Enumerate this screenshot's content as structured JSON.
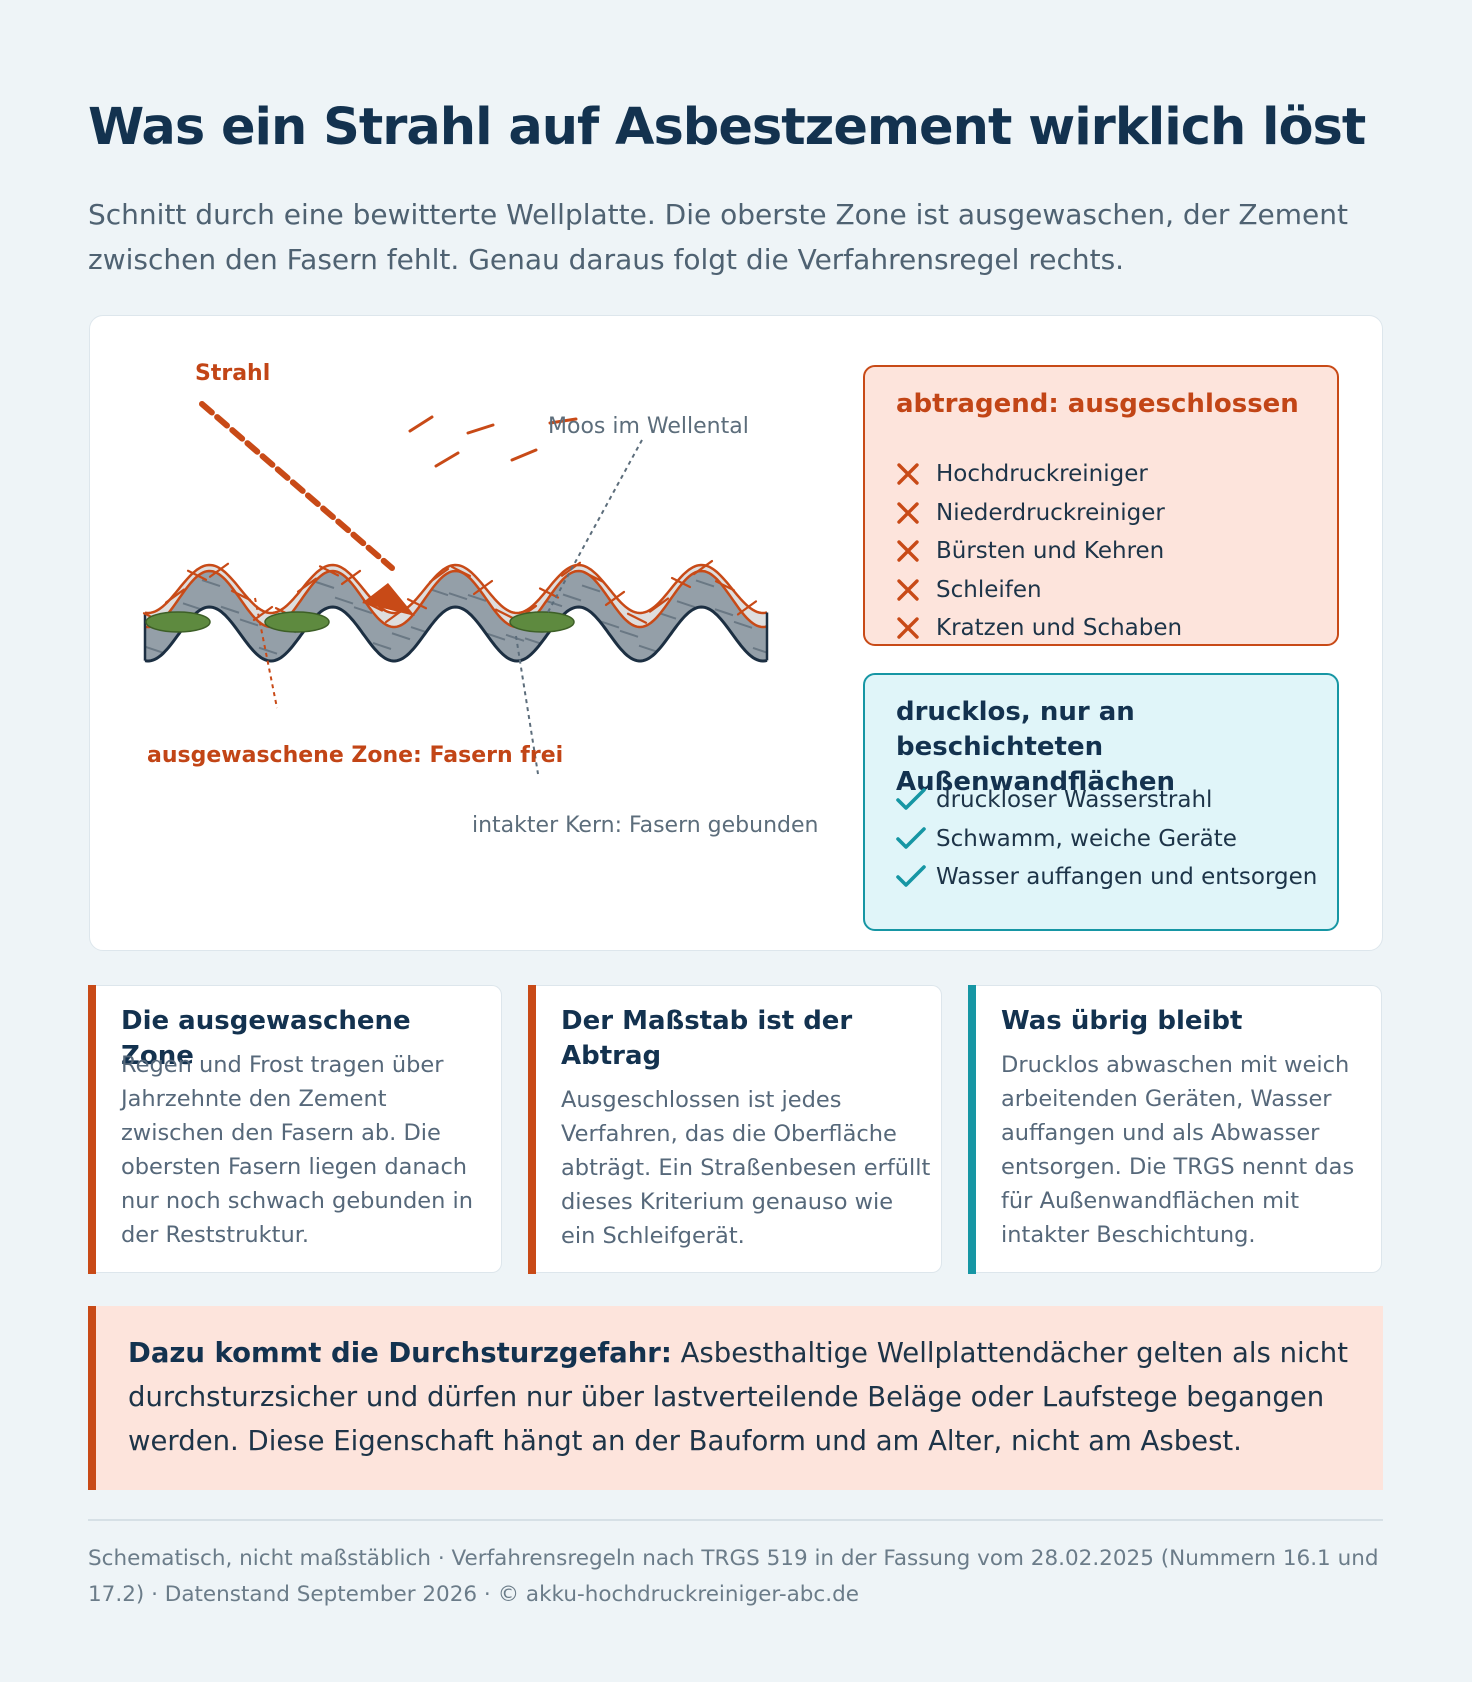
{
  "title": "Was ein Strahl auf Asbestzement wirklich löst",
  "subtitle": "Schnitt durch eine bewitterte Wellplatte. Die oberste Zone ist ausgewaschen, der Zement zwischen den Fasern fehlt. Genau daraus folgt die Verfahrensregel rechts.",
  "diagram": {
    "labels": {
      "strahl": "Strahl",
      "moos": "Moos im Wellental",
      "zone": "ausgewaschene Zone: Fasern frei",
      "kern": "intakter Kern: Fasern gebunden"
    },
    "colors": {
      "accent": "#c84a17",
      "core": "#949fa8",
      "weathered": "#dedede",
      "moss": "#5e8a3f",
      "teal": "#1696a4"
    }
  },
  "excluded": {
    "title": "abtragend: ausgeschlossen",
    "icon": "cross-icon",
    "items": [
      "Hochdruckreiniger",
      "Niederdruckreiniger",
      "Bürsten und Kehren",
      "Schleifen",
      "Kratzen und Schaben"
    ]
  },
  "allowed": {
    "title": "drucklos, nur an beschichteten Außenwandflächen",
    "icon": "check-icon",
    "items": [
      "druckloser Wasserstrahl",
      "Schwamm, weiche Geräte",
      "Wasser auffangen und entsorgen"
    ]
  },
  "cards": [
    {
      "title": "Die ausgewaschene Zone",
      "body": "Regen und Frost tragen über Jahrzehnte den Zement zwischen den Fasern ab. Die obersten Fasern liegen danach nur noch schwach gebunden in der Reststruktur."
    },
    {
      "title": "Der Maßstab ist der Abtrag",
      "body": "Ausgeschlossen ist jedes Verfahren, das die Oberfläche abträgt. Ein Straßenbesen erfüllt dieses Kriterium genauso wie ein Schleifgerät."
    },
    {
      "title": "Was übrig bleibt",
      "body": "Drucklos abwaschen mit weich arbeitenden Geräten, Wasser auffangen und als Abwasser entsorgen. Die TRGS nennt das für Außenwandflächen mit intakter Beschichtung."
    }
  ],
  "callout": {
    "lead": "Dazu kommt die Durchsturzgefahr:",
    "text": "Asbesthaltige Wellplattendächer gelten als nicht durchsturzsicher und dürfen nur über lastverteilende Beläge oder Laufstege begangen werden. Diese Eigenschaft hängt an der Bauform und am Alter, nicht am Asbest."
  },
  "footer": "Schematisch, nicht maßstäblich · Verfahrensregeln nach TRGS 519 in der Fassung vom 28.02.2025 (Nummern 16.1 und 17.2) · Datenstand September 2026 · © akku-hochdruckreiniger-abc.de"
}
